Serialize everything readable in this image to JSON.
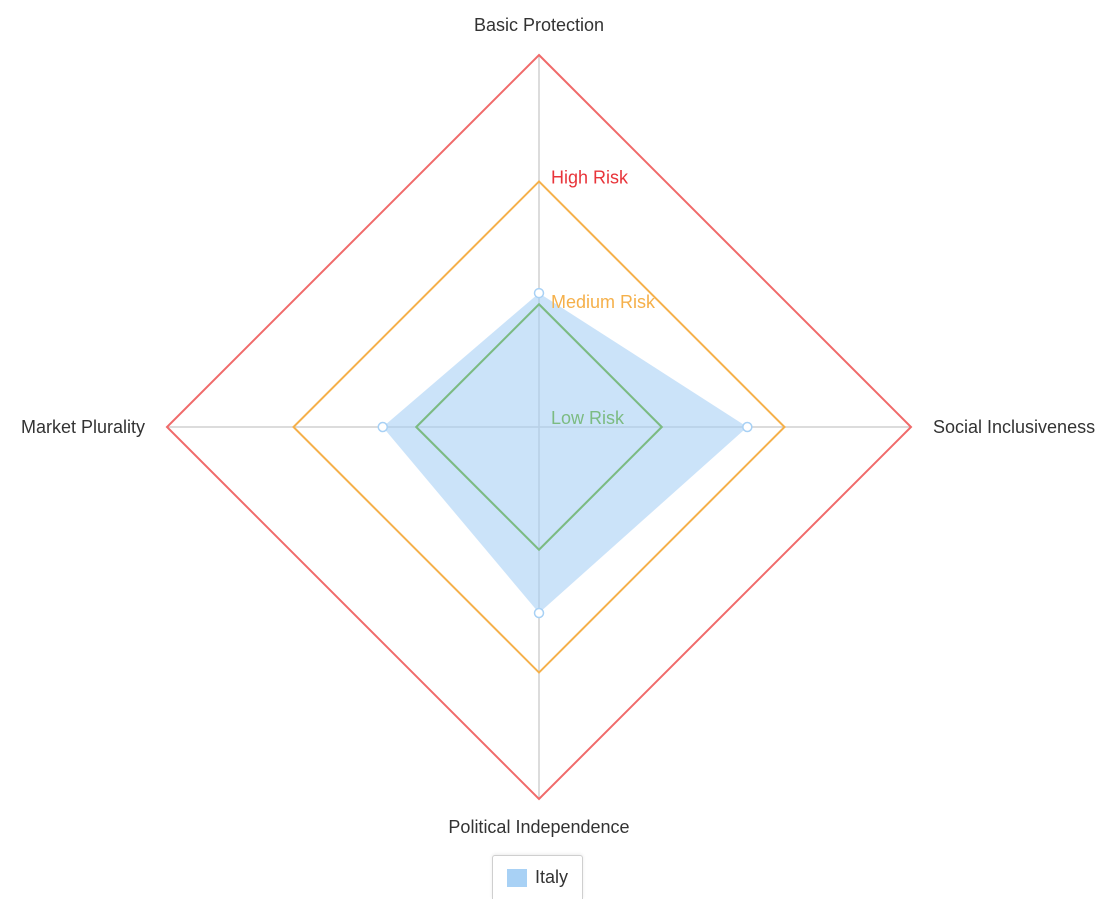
{
  "chart_data": {
    "type": "radar",
    "axes": [
      "Basic Protection",
      "Social Inclusiveness",
      "Political Independence",
      "Market Plurality"
    ],
    "range": [
      0,
      100
    ],
    "thresholds": [
      {
        "label": "Low Risk",
        "value": 33,
        "color": "#7cbb82"
      },
      {
        "label": "Medium Risk",
        "value": 66,
        "color": "#f5b04a"
      },
      {
        "label": "High Risk",
        "value": 100,
        "color": "#f06a6a"
      }
    ],
    "series": [
      {
        "name": "Italy",
        "values": [
          36,
          56,
          50,
          42
        ],
        "color": "#a8d1f5"
      }
    ],
    "grid": true,
    "legend_position": "bottom-center"
  },
  "legend": {
    "label": "Italy"
  }
}
